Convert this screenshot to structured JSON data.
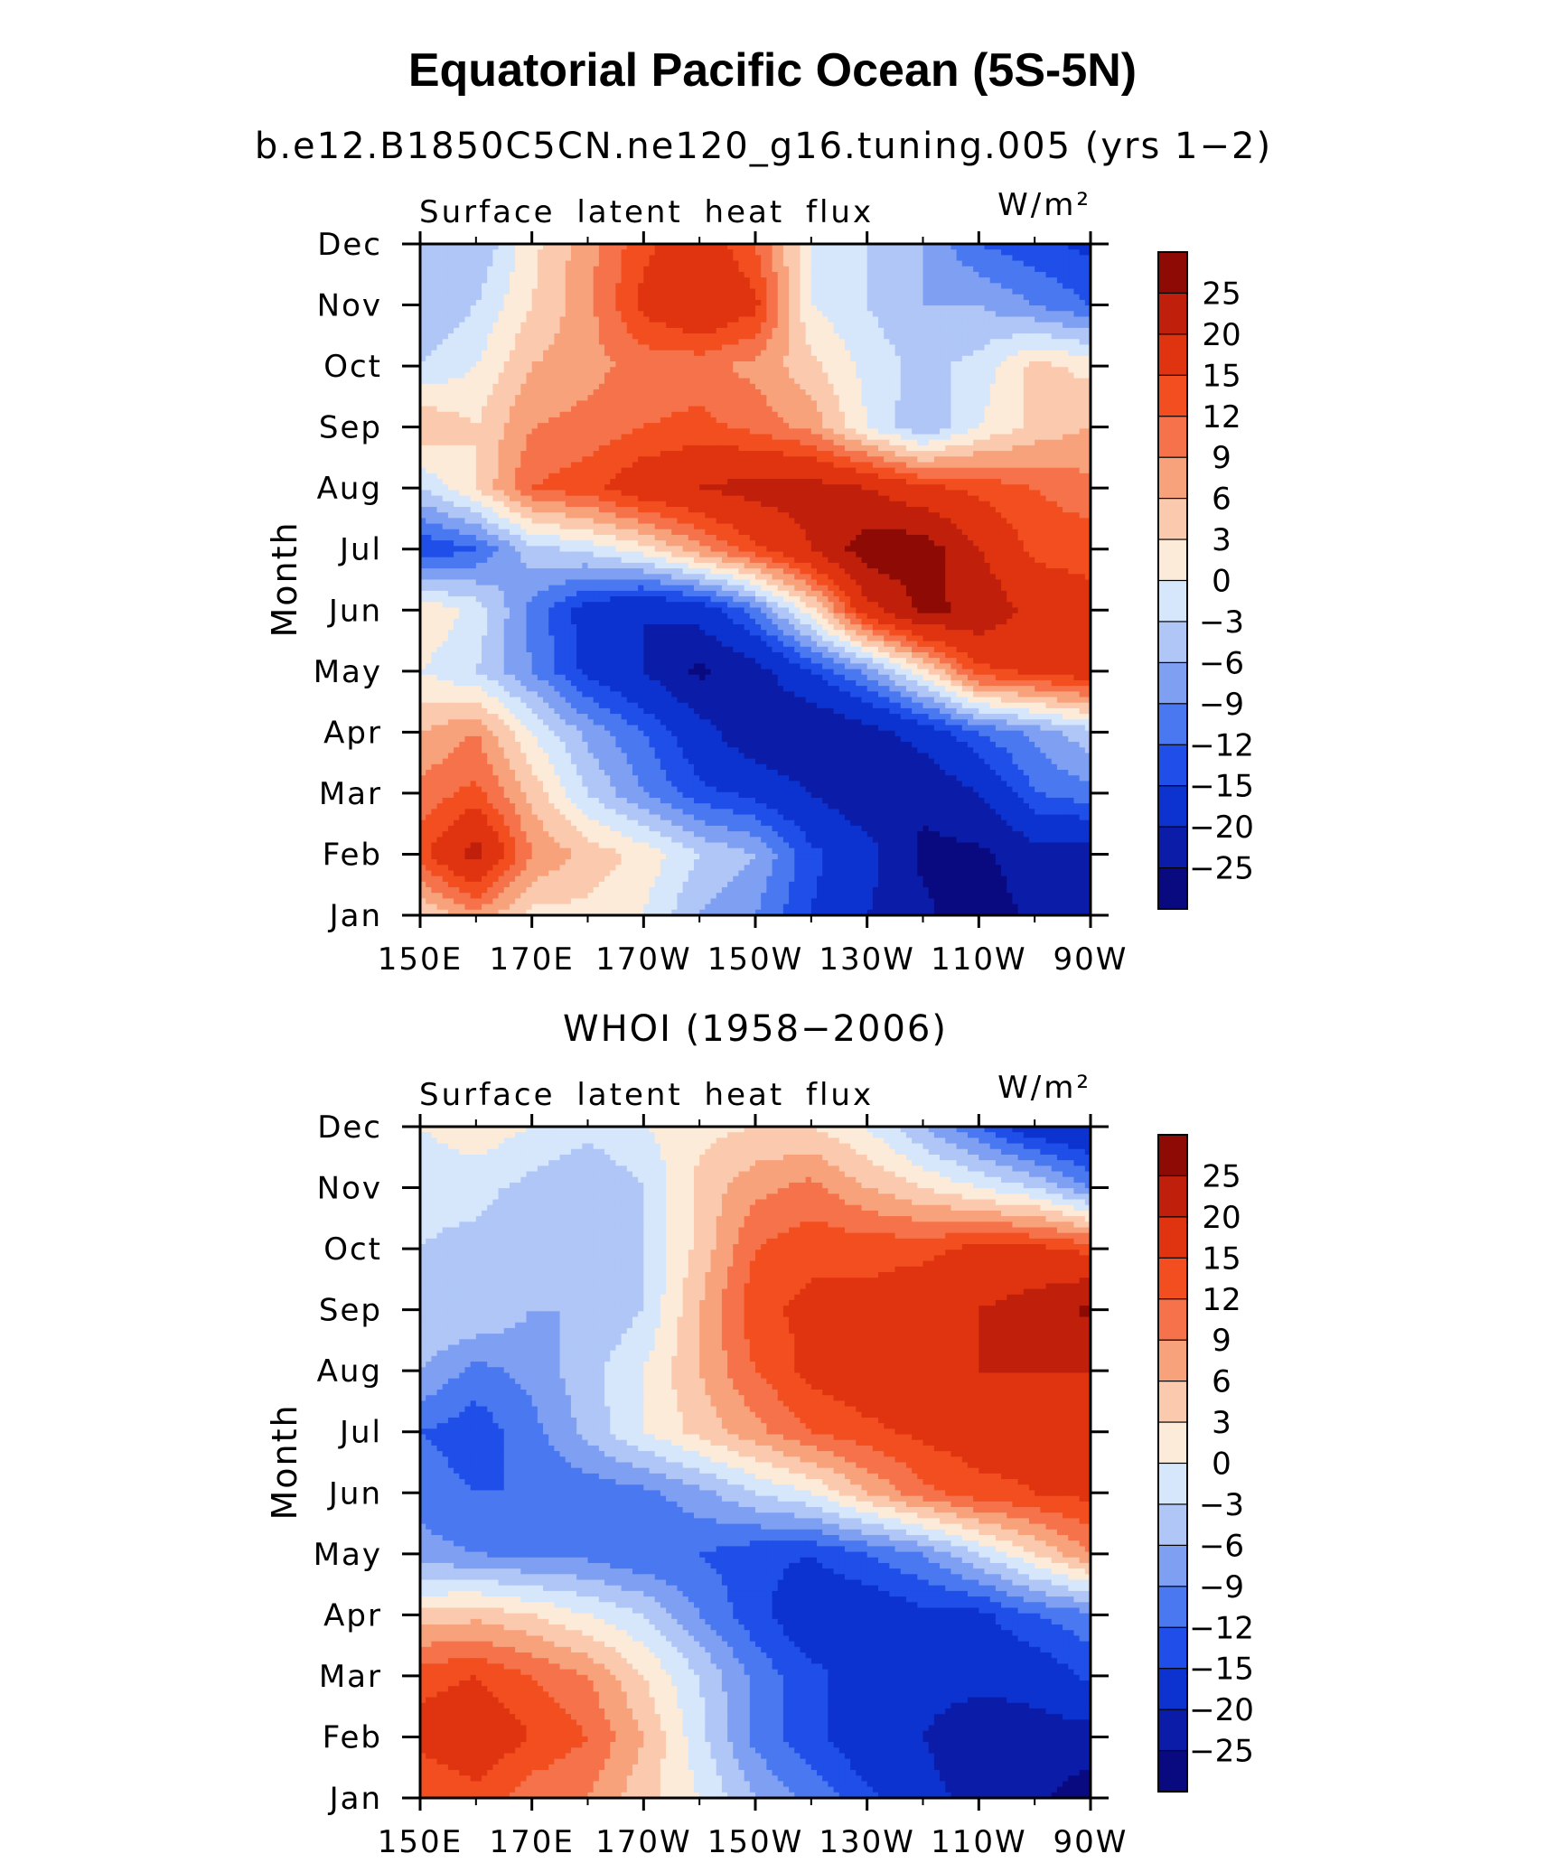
{
  "title": "Equatorial Pacific Ocean (5S-5N)",
  "chart_data": [
    {
      "type": "heatmap",
      "subtitle": "b.e12.B1850C5CN.ne120_g16.tuning.005 (yrs 1−2)",
      "variable_label": "Surface latent heat flux",
      "units_label": "W/m²",
      "ylabel": "Month",
      "x_tick_labels": [
        "150E",
        "170E",
        "170W",
        "150W",
        "130W",
        "110W",
        "90W"
      ],
      "x_ticks_lon": [
        150,
        170,
        190,
        210,
        230,
        250,
        270
      ],
      "xlim_lon": [
        150,
        270
      ],
      "months": [
        "Jan",
        "Feb",
        "Mar",
        "Apr",
        "May",
        "Jun",
        "Jul",
        "Aug",
        "Sep",
        "Oct",
        "Nov",
        "Dec"
      ],
      "colorbar_labels": [
        "25",
        "20",
        "15",
        "12",
        "9",
        "6",
        "3",
        "0",
        "−3",
        "−6",
        "−9",
        "−12",
        "−15",
        "−20",
        "−25"
      ],
      "grid_lon": [
        150,
        160,
        170,
        180,
        190,
        200,
        210,
        220,
        230,
        240,
        250,
        260,
        270
      ],
      "values": [
        [
          3,
          8,
          2,
          2,
          0,
          -6,
          -9,
          -15,
          -20,
          -24,
          -28,
          -24,
          -22
        ],
        [
          14,
          22,
          9,
          5,
          2,
          -3,
          -6,
          -14,
          -18,
          -26,
          -26,
          -22,
          -22
        ],
        [
          10,
          13,
          5,
          -3,
          -9,
          -14,
          -16,
          -20,
          -24,
          -24,
          -20,
          -12,
          -10
        ],
        [
          6,
          9,
          0,
          -7,
          -12,
          -18,
          -24,
          -25,
          -22,
          -18,
          -12,
          -8,
          -4
        ],
        [
          0,
          -3,
          -9,
          -16,
          -20,
          -26,
          -22,
          -15,
          -8,
          2,
          14,
          16,
          18
        ],
        [
          3,
          -1,
          -10,
          -17,
          -20,
          -18,
          -10,
          2,
          18,
          26,
          24,
          18,
          16
        ],
        [
          -15,
          -12,
          -4,
          -2,
          2,
          8,
          14,
          20,
          28,
          28,
          20,
          14,
          14
        ],
        [
          -3,
          3,
          12,
          14,
          18,
          20,
          22,
          22,
          20,
          16,
          14,
          12,
          10
        ],
        [
          6,
          3,
          9,
          10,
          12,
          13,
          11,
          8,
          0,
          -6,
          0,
          4,
          6
        ],
        [
          -3,
          0,
          6,
          8,
          10,
          10,
          8,
          4,
          -1,
          -4,
          -2,
          4,
          2
        ],
        [
          -6,
          -3,
          3,
          8,
          16,
          20,
          16,
          0,
          -3,
          -6,
          -6,
          -9,
          -12
        ],
        [
          -3,
          -6,
          2,
          8,
          14,
          18,
          12,
          0,
          -3,
          -6,
          -12,
          -14,
          -16
        ]
      ]
    },
    {
      "type": "heatmap",
      "subtitle": "WHOI (1958−2006)",
      "variable_label": "Surface latent heat flux",
      "units_label": "W/m²",
      "ylabel": "Month",
      "x_tick_labels": [
        "150E",
        "170E",
        "170W",
        "150W",
        "130W",
        "110W",
        "90W"
      ],
      "x_ticks_lon": [
        150,
        170,
        190,
        210,
        230,
        250,
        270
      ],
      "xlim_lon": [
        150,
        270
      ],
      "months": [
        "Jan",
        "Feb",
        "Mar",
        "Apr",
        "May",
        "Jun",
        "Jul",
        "Aug",
        "Sep",
        "Oct",
        "Nov",
        "Dec"
      ],
      "colorbar_labels": [
        "25",
        "20",
        "15",
        "12",
        "9",
        "6",
        "3",
        "0",
        "−3",
        "−6",
        "−9",
        "−12",
        "−15",
        "−20",
        "−25"
      ],
      "grid_lon": [
        150,
        160,
        170,
        180,
        190,
        200,
        210,
        220,
        230,
        240,
        250,
        260,
        270
      ],
      "values": [
        [
          12,
          14,
          10,
          9,
          4,
          0,
          -6,
          -10,
          -14,
          -18,
          -22,
          -24,
          -28
        ],
        [
          16,
          18,
          15,
          12,
          6,
          -2,
          -10,
          -14,
          -18,
          -20,
          -24,
          -22,
          -22
        ],
        [
          14,
          15,
          12,
          9,
          3,
          -3,
          -10,
          -14,
          -17,
          -18,
          -18,
          -18,
          -14
        ],
        [
          4,
          5,
          3,
          0,
          -3,
          -9,
          -14,
          -18,
          -18,
          -16,
          -16,
          -12,
          -10
        ],
        [
          -8,
          -9,
          -10,
          -10,
          -12,
          -12,
          -14,
          -15,
          -12,
          -9,
          -3,
          3,
          9
        ],
        [
          -10,
          -12,
          -12,
          -11,
          -10,
          -7,
          -3,
          0,
          6,
          11,
          14,
          15,
          16
        ],
        [
          -12,
          -14,
          -10,
          -5,
          0,
          4,
          8,
          12,
          14,
          16,
          17,
          16,
          16
        ],
        [
          -6,
          -10,
          -8,
          -4,
          0,
          6,
          12,
          16,
          18,
          18,
          20,
          20,
          20
        ],
        [
          -3,
          -3,
          -6,
          -6,
          -3,
          6,
          14,
          16,
          16,
          18,
          20,
          22,
          26
        ],
        [
          -3,
          -4,
          -6,
          -6,
          -3,
          4,
          12,
          14,
          14,
          14,
          16,
          16,
          14
        ],
        [
          -2,
          -2,
          -4,
          -6,
          -3,
          4,
          8,
          10,
          6,
          3,
          0,
          -3,
          -9
        ],
        [
          0,
          2,
          0,
          -2,
          0,
          2,
          3,
          3,
          0,
          -6,
          -12,
          -18,
          -20
        ]
      ]
    }
  ],
  "colors": {
    "levels": [
      -25,
      -20,
      -15,
      -12,
      -9,
      -6,
      -3,
      0,
      3,
      6,
      9,
      12,
      15,
      20,
      25
    ],
    "fills": [
      "#0a0a80",
      "#0b1da8",
      "#0c33d0",
      "#1f4fe8",
      "#4a78f0",
      "#7fa0f2",
      "#afc6f7",
      "#d6e6fb",
      "#fdebd9",
      "#fbcaae",
      "#f8a27c",
      "#f5724a",
      "#f24e1f",
      "#e03410",
      "#c0200b",
      "#8e0a05"
    ]
  }
}
